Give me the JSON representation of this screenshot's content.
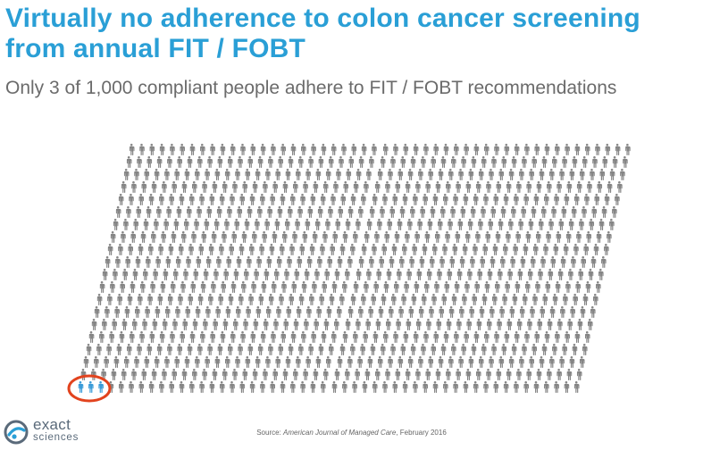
{
  "title": "Virtually no adherence to colon cancer screening from annual FIT / FOBT",
  "subtitle": "Only 3 of 1,000 compliant people adhere to FIT / FOBT recommendations",
  "source": {
    "prefix": "Source: ",
    "journal": "American Journal of Managed Care",
    "suffix": ", February 2016"
  },
  "logo": {
    "line1": "exact",
    "line2": "sciences"
  },
  "icons": {
    "person": "person-icon",
    "highlight": "highlight-circle"
  },
  "figure_data": {
    "total_people": 1000,
    "adherent_people": 3
  },
  "colors": {
    "title": "#2a9fd6",
    "subtitle": "#6b6b6b",
    "person": "#858585",
    "adherent": "#3a9bd8",
    "highlight_ring": "#e2431e",
    "source_text": "#666666",
    "logo_text": "#5a6a7a",
    "logo_accent": "#2a9fd6"
  }
}
